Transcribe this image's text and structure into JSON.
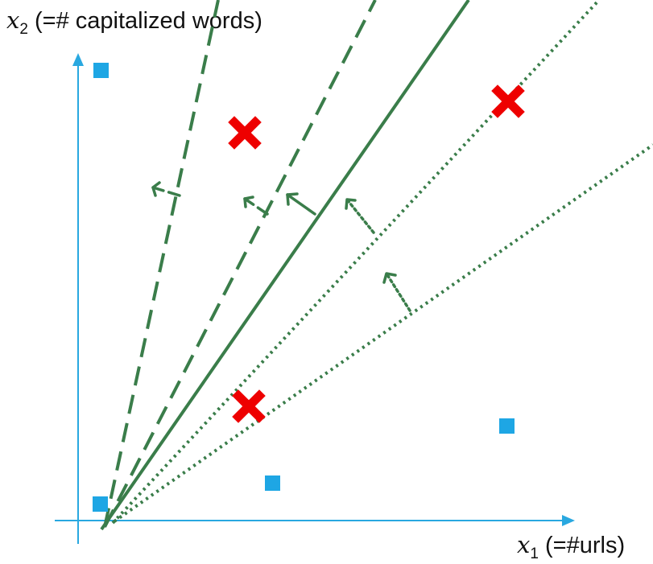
{
  "y_axis": {
    "var": "x",
    "sub": "2",
    "text": " (=# capitalized words)"
  },
  "x_axis": {
    "var": "x",
    "sub": "1",
    "text": " (=#urls)"
  },
  "points": {
    "positive_class": {
      "marker": "blue-square",
      "count": 4
    },
    "negative_class": {
      "marker": "red-cross",
      "count": 3
    }
  },
  "separators": [
    {
      "style": "dashed"
    },
    {
      "style": "dashed"
    },
    {
      "style": "solid"
    },
    {
      "style": "dotted"
    },
    {
      "style": "dotted"
    }
  ],
  "colors": {
    "axis": "#29a8e0",
    "square": "#1ea6e4",
    "cross": "#ee0000",
    "line": "#3a7d4a",
    "text": "#111111"
  }
}
